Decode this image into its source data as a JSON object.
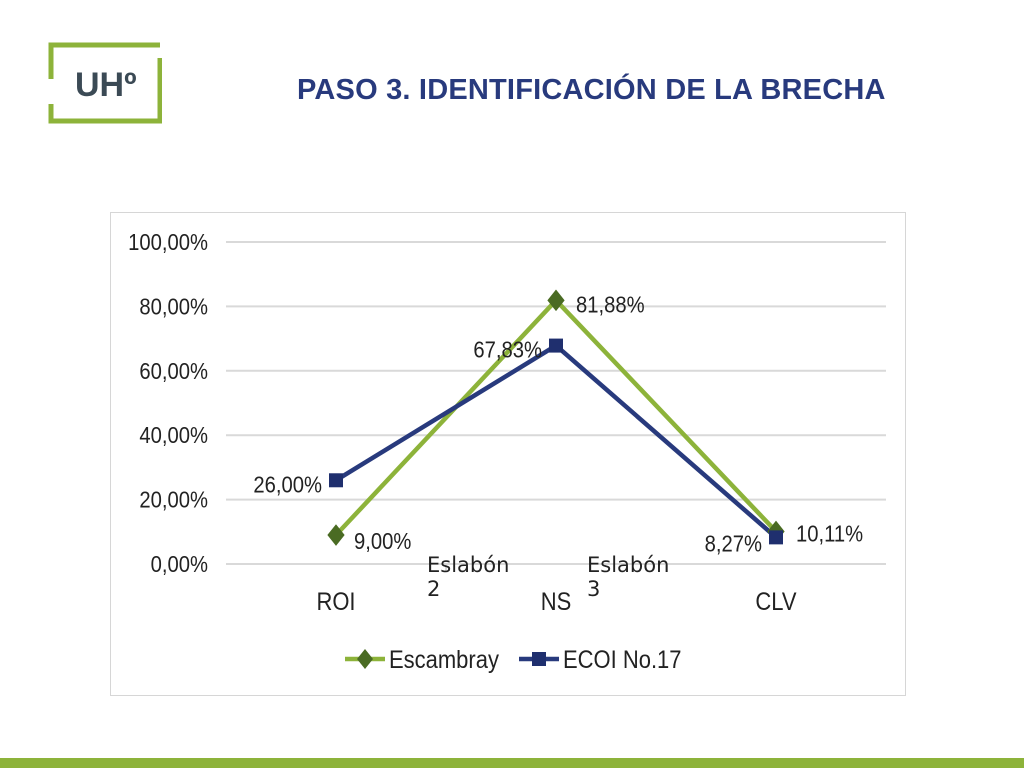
{
  "header": {
    "logo_text": "UHº",
    "title": "PASO 3. IDENTIFICACIÓN DE LA BRECHA"
  },
  "colors": {
    "brand_green": "#8db33a",
    "title_blue": "#283a7d",
    "logo_gray": "#3b4a55"
  },
  "chart_data": {
    "type": "line",
    "categories": [
      "ROI",
      "NS",
      "CLV"
    ],
    "ylim": [
      0,
      100
    ],
    "ytick_labels": [
      "0,00%",
      "20,00%",
      "40,00%",
      "60,00%",
      "80,00%",
      "100,00%"
    ],
    "grid": true,
    "legend_position": "bottom",
    "series": [
      {
        "name": "Escambray",
        "values": [
          9.0,
          81.88,
          10.11
        ],
        "labels": [
          "9,00%",
          "81,88%",
          "10,11%"
        ],
        "color": "#8db33a",
        "marker": "diamond"
      },
      {
        "name": "ECOI No.17",
        "values": [
          26.0,
          67.83,
          8.27
        ],
        "labels": [
          "26,00%",
          "67,83%",
          "8,27%"
        ],
        "color": "#283a7d",
        "marker": "square"
      }
    ],
    "annotations": [
      "Eslabón 2",
      "Eslabón 3"
    ]
  }
}
